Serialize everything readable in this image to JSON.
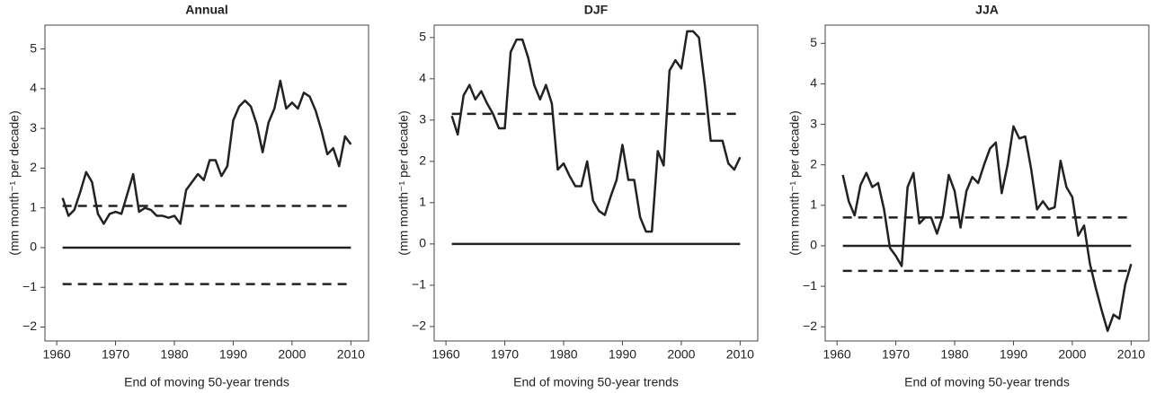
{
  "chart_data": [
    {
      "type": "line",
      "title": "Annual",
      "x_label": "End of moving 50-year trends",
      "y_label": "(mm month⁻¹ per decade)",
      "x": [
        1961,
        1962,
        1963,
        1964,
        1965,
        1966,
        1967,
        1968,
        1969,
        1970,
        1971,
        1972,
        1973,
        1974,
        1975,
        1976,
        1977,
        1978,
        1979,
        1980,
        1981,
        1982,
        1983,
        1984,
        1985,
        1986,
        1987,
        1988,
        1989,
        1990,
        1991,
        1992,
        1993,
        1994,
        1995,
        1996,
        1997,
        1998,
        1999,
        2000,
        2001,
        2002,
        2003,
        2004,
        2005,
        2006,
        2007,
        2008,
        2009,
        2010
      ],
      "series": [
        {
          "color": "#222222",
          "values": [
            1.25,
            0.8,
            0.95,
            1.4,
            1.9,
            1.65,
            0.85,
            0.6,
            0.85,
            0.9,
            0.85,
            1.35,
            1.85,
            0.9,
            1.0,
            0.95,
            0.8,
            0.8,
            0.75,
            0.8,
            0.6,
            1.45,
            1.65,
            1.85,
            1.7,
            2.2,
            2.2,
            1.8,
            2.05,
            3.2,
            3.55,
            3.7,
            3.55,
            3.1,
            2.4,
            3.15,
            3.5,
            4.2,
            3.5,
            3.65,
            3.5,
            3.9,
            3.8,
            3.45,
            2.95,
            2.35,
            2.5,
            2.05,
            2.8,
            2.6
          ]
        }
      ],
      "hlines": [
        {
          "value": 0,
          "style": "solid"
        },
        {
          "value": 1.05,
          "style": "dashed"
        },
        {
          "value": -0.92,
          "style": "dashed"
        }
      ],
      "xlim": [
        1958,
        2013
      ],
      "xticks": [
        1960,
        1970,
        1980,
        1990,
        2000,
        2010
      ],
      "ylim": [
        -2.35,
        5.6
      ],
      "yticks": [
        {
          "value": -2,
          "label": "−2"
        },
        {
          "value": -1,
          "label": "−1"
        },
        0,
        1,
        2,
        3,
        4,
        5
      ]
    },
    {
      "type": "line",
      "title": "DJF",
      "x_label": "End of moving 50-year trends",
      "y_label": "(mm month⁻¹ per decade)",
      "x": [
        1961,
        1962,
        1963,
        1964,
        1965,
        1966,
        1967,
        1968,
        1969,
        1970,
        1971,
        1972,
        1973,
        1974,
        1975,
        1976,
        1977,
        1978,
        1979,
        1980,
        1981,
        1982,
        1983,
        1984,
        1985,
        1986,
        1987,
        1988,
        1989,
        1990,
        1991,
        1992,
        1993,
        1994,
        1995,
        1996,
        1997,
        1998,
        1999,
        2000,
        2001,
        2002,
        2003,
        2004,
        2005,
        2006,
        2007,
        2008,
        2009,
        2010
      ],
      "series": [
        {
          "color": "#222222",
          "values": [
            3.1,
            2.65,
            3.6,
            3.85,
            3.5,
            3.7,
            3.4,
            3.15,
            2.8,
            2.8,
            4.65,
            4.95,
            4.95,
            4.5,
            3.85,
            3.5,
            3.85,
            3.4,
            1.8,
            1.95,
            1.65,
            1.4,
            1.4,
            2.0,
            1.05,
            0.8,
            0.7,
            1.15,
            1.55,
            2.4,
            1.55,
            1.55,
            0.65,
            0.3,
            0.3,
            2.25,
            1.9,
            4.2,
            4.45,
            4.25,
            5.15,
            5.15,
            5.0,
            3.85,
            2.5,
            2.5,
            2.5,
            1.95,
            1.8,
            2.1
          ]
        }
      ],
      "hlines": [
        {
          "value": 0,
          "style": "solid"
        },
        {
          "value": 3.15,
          "style": "dashed"
        }
      ],
      "xlim": [
        1958,
        2013
      ],
      "xticks": [
        1960,
        1970,
        1980,
        1990,
        2000,
        2010
      ],
      "ylim": [
        -2.35,
        5.3
      ],
      "yticks": [
        {
          "value": -2,
          "label": "−2"
        },
        {
          "value": -1,
          "label": "−1"
        },
        0,
        1,
        2,
        3,
        4,
        5
      ]
    },
    {
      "type": "line",
      "title": "JJA",
      "x_label": "End of moving 50-year trends",
      "y_label": "(mm month⁻¹ per decade)",
      "x": [
        1961,
        1962,
        1963,
        1964,
        1965,
        1966,
        1967,
        1968,
        1969,
        1970,
        1971,
        1972,
        1973,
        1974,
        1975,
        1976,
        1977,
        1978,
        1979,
        1980,
        1981,
        1982,
        1983,
        1984,
        1985,
        1986,
        1987,
        1988,
        1989,
        1990,
        1991,
        1992,
        1993,
        1994,
        1995,
        1996,
        1997,
        1998,
        1999,
        2000,
        2001,
        2002,
        2003,
        2004,
        2005,
        2006,
        2007,
        2008,
        2009,
        2010
      ],
      "series": [
        {
          "color": "#222222",
          "values": [
            1.75,
            1.1,
            0.75,
            1.5,
            1.8,
            1.45,
            1.55,
            0.9,
            -0.05,
            -0.25,
            -0.5,
            1.45,
            1.8,
            0.55,
            0.7,
            0.7,
            0.3,
            0.75,
            1.75,
            1.35,
            0.45,
            1.35,
            1.7,
            1.55,
            2.0,
            2.4,
            2.55,
            1.3,
            2.0,
            2.95,
            2.65,
            2.7,
            1.9,
            0.9,
            1.1,
            0.9,
            0.95,
            2.1,
            1.45,
            1.2,
            0.25,
            0.5,
            -0.45,
            -1.05,
            -1.6,
            -2.1,
            -1.7,
            -1.8,
            -0.95,
            -0.45
          ]
        }
      ],
      "hlines": [
        {
          "value": 0,
          "style": "solid"
        },
        {
          "value": 0.7,
          "style": "dashed"
        },
        {
          "value": -0.62,
          "style": "dashed"
        }
      ],
      "xlim": [
        1958,
        2013
      ],
      "xticks": [
        1960,
        1970,
        1980,
        1990,
        2000,
        2010
      ],
      "ylim": [
        -2.35,
        5.45
      ],
      "yticks": [
        {
          "value": -2,
          "label": "−2"
        },
        {
          "value": -1,
          "label": "−1"
        },
        0,
        1,
        2,
        3,
        4,
        5
      ]
    }
  ]
}
